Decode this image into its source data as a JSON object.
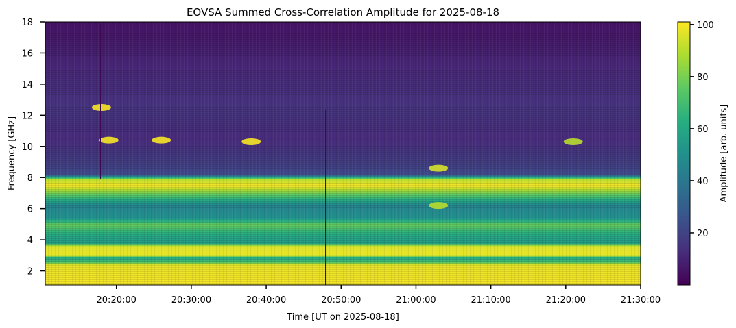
{
  "chart_data": {
    "type": "heatmap",
    "title": "EOVSA Summed Cross-Correlation Amplitude for 2025-08-18",
    "xlabel": "Time [UT on 2025-08-18]",
    "ylabel": "Frequency [GHz]",
    "x_range": [
      "20:10:30",
      "21:30:00"
    ],
    "x_ticks": [
      "20:20:00",
      "20:30:00",
      "20:40:00",
      "20:50:00",
      "21:00:00",
      "21:10:00",
      "21:20:00",
      "21:30:00"
    ],
    "y_range": [
      1.1,
      18
    ],
    "y_ticks": [
      2,
      4,
      6,
      8,
      10,
      12,
      14,
      16,
      18
    ],
    "colorbar": {
      "label": "Amplitude [arb. units]",
      "range": [
        0,
        101
      ],
      "ticks": [
        20,
        40,
        60,
        80,
        100
      ],
      "colormap": "viridis"
    },
    "frequency_profile": [
      {
        "freq": 1.1,
        "amp": 100
      },
      {
        "freq": 2.4,
        "amp": 98
      },
      {
        "freq": 2.6,
        "amp": 70
      },
      {
        "freq": 2.9,
        "amp": 60
      },
      {
        "freq": 3.0,
        "amp": 98
      },
      {
        "freq": 3.6,
        "amp": 96
      },
      {
        "freq": 3.8,
        "amp": 55
      },
      {
        "freq": 4.4,
        "amp": 62
      },
      {
        "freq": 5.0,
        "amp": 78
      },
      {
        "freq": 5.4,
        "amp": 50
      },
      {
        "freq": 6.2,
        "amp": 45
      },
      {
        "freq": 6.9,
        "amp": 75
      },
      {
        "freq": 7.5,
        "amp": 100
      },
      {
        "freq": 7.9,
        "amp": 90
      },
      {
        "freq": 8.2,
        "amp": 22
      },
      {
        "freq": 9.0,
        "amp": 18
      },
      {
        "freq": 10.5,
        "amp": 12
      },
      {
        "freq": 12.2,
        "amp": 15
      },
      {
        "freq": 14.5,
        "amp": 12
      },
      {
        "freq": 18.0,
        "amp": 5
      }
    ],
    "bright_features": [
      {
        "time": "20:26:00",
        "freq": 10.4,
        "amp": 100
      },
      {
        "time": "20:38:00",
        "freq": 10.3,
        "amp": 100
      },
      {
        "time": "20:19:00",
        "freq": 10.4,
        "amp": 100
      },
      {
        "time": "20:18:00",
        "freq": 12.5,
        "amp": 100
      },
      {
        "time": "21:03:00",
        "freq": 8.6,
        "amp": 95
      },
      {
        "time": "21:03:00",
        "freq": 6.2,
        "amp": 90
      },
      {
        "time": "21:21:00",
        "freq": 10.3,
        "amp": 90
      }
    ]
  }
}
